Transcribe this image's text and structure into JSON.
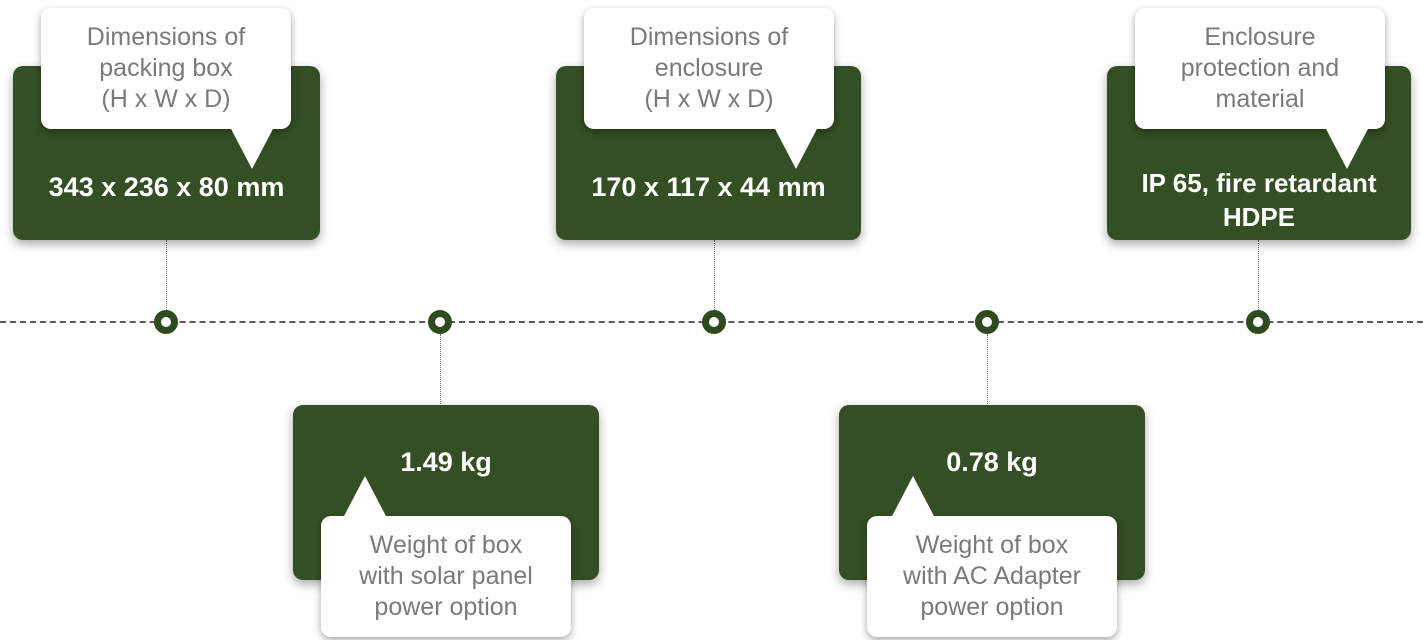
{
  "items": [
    {
      "value": "343 x 236 x 80 mm",
      "label": "Dimensions of\npacking box\n(H x W x D)"
    },
    {
      "value": "1.49 kg",
      "label": "Weight of box\nwith solar panel\npower option"
    },
    {
      "value": "170 x 117 x 44 mm",
      "label": "Dimensions of\nenclosure\n(H x W x D)"
    },
    {
      "value": "0.78 kg",
      "label": "Weight of box\nwith AC Adapter\npower option"
    },
    {
      "value": "IP 65, fire retardant\nHDPE",
      "label": "Enclosure\nprotection and\nmaterial"
    }
  ],
  "colors": {
    "card": "#354f24",
    "node_ring": "#2f4a1f",
    "label_text": "#7a7a7a",
    "axis": "#5a5a5a"
  }
}
